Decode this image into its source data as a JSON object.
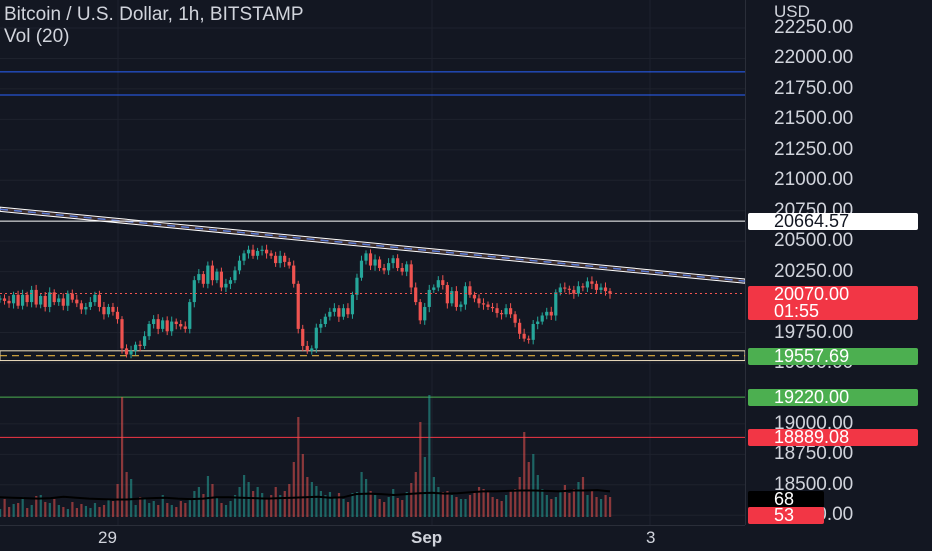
{
  "symbol": {
    "title": "Bitcoin / U.S. Dollar, 1h, BITSTAMP",
    "volume_indicator": "Vol (20)"
  },
  "price_axis": {
    "currency": "USD",
    "ticks": [
      "22250.00",
      "22000.00",
      "21750.00",
      "21500.00",
      "21250.00",
      "21000.00",
      "20750.00",
      "20500.00",
      "20250.00",
      "19750.00",
      "19500.00",
      "19000.00",
      "18750.00",
      "18500.00",
      "18250.00"
    ],
    "tick_values": [
      22250,
      22000,
      21750,
      21500,
      21250,
      21000,
      20750,
      20500,
      20250,
      19750,
      19500,
      19000,
      18750,
      18500,
      18250
    ]
  },
  "price_tags": {
    "resistance": {
      "label": "20664.57",
      "bg": "#ffffff",
      "fg": "#131722",
      "value": 20664.57
    },
    "last_price": {
      "label": "20070.00",
      "countdown": "01:55",
      "bg": "#f23645",
      "fg": "#ffffff",
      "value": 20070.0
    },
    "support": {
      "label": "19557.69",
      "bg": "#4caf50",
      "fg": "#ffffff",
      "value": 19557.69
    },
    "green_level": {
      "label": "19220.00",
      "bg": "#4caf50",
      "fg": "#ffffff",
      "value": 19220.0
    },
    "red_level": {
      "label": "18889.08",
      "bg": "#f23645",
      "fg": "#ffffff",
      "value": 18889.08
    },
    "volume_ma": {
      "label": "68",
      "bg": "#000000",
      "fg": "#ffffff"
    },
    "volume_last": {
      "label": "53",
      "bg": "#f23645",
      "fg": "#ffffff"
    }
  },
  "time_axis": {
    "labels": [
      "29",
      "Sep",
      "3"
    ]
  },
  "colors": {
    "up": "#26a69a",
    "down": "#ef5350",
    "blue_line": "#2962ff",
    "channel_fill": "#5d4037",
    "text": "#d1d4dc",
    "background": "#131722"
  },
  "drawings": {
    "blue_levels": [
      21890,
      21700
    ],
    "upper_trendline": {
      "start_price": 20780,
      "end_price": 20190
    },
    "support_band": {
      "top": 19600,
      "bottom": 19520
    }
  },
  "chart_data": {
    "type": "candlestick",
    "ylim": [
      18170,
      22480
    ],
    "x_labels": [
      "29",
      "Sep",
      "3"
    ],
    "closes": [
      20030,
      20010,
      19990,
      20060,
      19970,
      20060,
      20000,
      20100,
      19980,
      20050,
      19960,
      20080,
      20000,
      20030,
      19970,
      20070,
      20020,
      19990,
      19940,
      19960,
      20000,
      20060,
      19960,
      19900,
      19960,
      19920,
      19860,
      19620,
      19570,
      19600,
      19650,
      19640,
      19720,
      19820,
      19860,
      19780,
      19850,
      19760,
      19840,
      19820,
      19800,
      19780,
      20000,
      20180,
      20230,
      20150,
      20300,
      20180,
      20250,
      20120,
      20150,
      20180,
      20260,
      20340,
      20400,
      20430,
      20380,
      20420,
      20430,
      20400,
      20380,
      20320,
      20380,
      20330,
      20300,
      20150,
      19780,
      19640,
      19600,
      19620,
      19790,
      19820,
      19880,
      19920,
      19950,
      19880,
      19950,
      19900,
      20060,
      20200,
      20340,
      20400,
      20300,
      20350,
      20280,
      20260,
      20320,
      20360,
      20280,
      20250,
      20310,
      20120,
      20000,
      19850,
      19960,
      20100,
      20120,
      20180,
      20140,
      19990,
      20090,
      19960,
      19980,
      20130,
      20060,
      20030,
      19990,
      19980,
      19960,
      19950,
      19910,
      19900,
      19950,
      19900,
      19830,
      19740,
      19700,
      19690,
      19820,
      19840,
      19890,
      19920,
      19890,
      20080,
      20120,
      20110,
      20100,
      20070,
      20130,
      20120,
      20170,
      20150,
      20100,
      20120,
      20090,
      20070
    ],
    "volumes": [
      8,
      18,
      10,
      13,
      14,
      20,
      9,
      12,
      21,
      22,
      15,
      14,
      18,
      12,
      10,
      8,
      15,
      9,
      13,
      11,
      9,
      14,
      10,
      12,
      18,
      16,
      33,
      120,
      45,
      38,
      12,
      20,
      18,
      14,
      16,
      12,
      22,
      14,
      12,
      10,
      16,
      14,
      18,
      26,
      30,
      23,
      41,
      33,
      20,
      14,
      12,
      16,
      22,
      30,
      42,
      35,
      26,
      30,
      24,
      19,
      22,
      30,
      22,
      26,
      33,
      55,
      100,
      63,
      40,
      35,
      31,
      26,
      22,
      25,
      20,
      24,
      18,
      15,
      24,
      25,
      45,
      38,
      26,
      22,
      18,
      15,
      20,
      28,
      19,
      17,
      25,
      34,
      45,
      95,
      60,
      122,
      40,
      30,
      25,
      26,
      22,
      20,
      18,
      18,
      22,
      25,
      30,
      28,
      26,
      20,
      18,
      16,
      22,
      26,
      28,
      40,
      85,
      55,
      63,
      42,
      28,
      22,
      18,
      20,
      26,
      32,
      24,
      28,
      35,
      40,
      22,
      26,
      20,
      18,
      22,
      20
    ],
    "volume_ma": [
      55,
      54,
      53,
      52,
      53,
      56,
      54,
      52,
      51,
      50,
      50,
      52,
      53,
      54,
      52,
      51,
      52,
      55,
      55,
      54,
      53,
      52,
      53,
      54,
      55,
      56,
      54,
      55,
      62,
      63,
      62,
      60,
      62,
      64,
      65,
      63,
      64,
      66,
      68,
      68,
      69,
      70,
      70,
      69,
      68,
      70,
      70,
      71,
      68
    ]
  }
}
